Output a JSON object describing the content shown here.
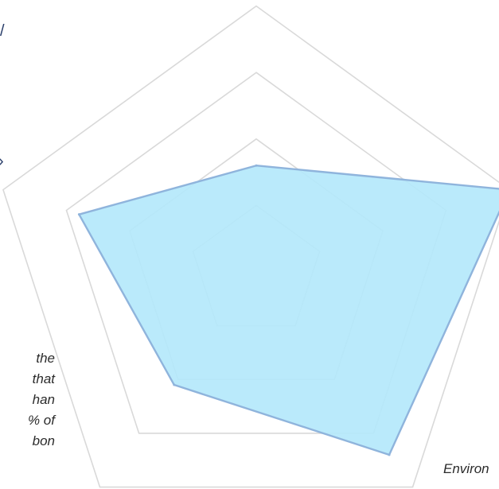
{
  "chart_data": {
    "type": "radar",
    "title": "",
    "axes": [
      "",
      "",
      "",
      "",
      "Environ"
    ],
    "rmax": 5,
    "rings": [
      1,
      2,
      3,
      4
    ],
    "grid": true,
    "legend": "none",
    "series": [
      {
        "values": [
          1.6,
          4.0,
          3.4,
          2.1,
          2.8
        ],
        "color": "#b4e8fb",
        "stroke": "#8fb4dc"
      }
    ]
  },
  "side_text": {
    "lines": [
      "the",
      "that",
      "han",
      "% of",
      "bon"
    ]
  },
  "fragments": {
    "top": "/",
    "mid": "›"
  }
}
